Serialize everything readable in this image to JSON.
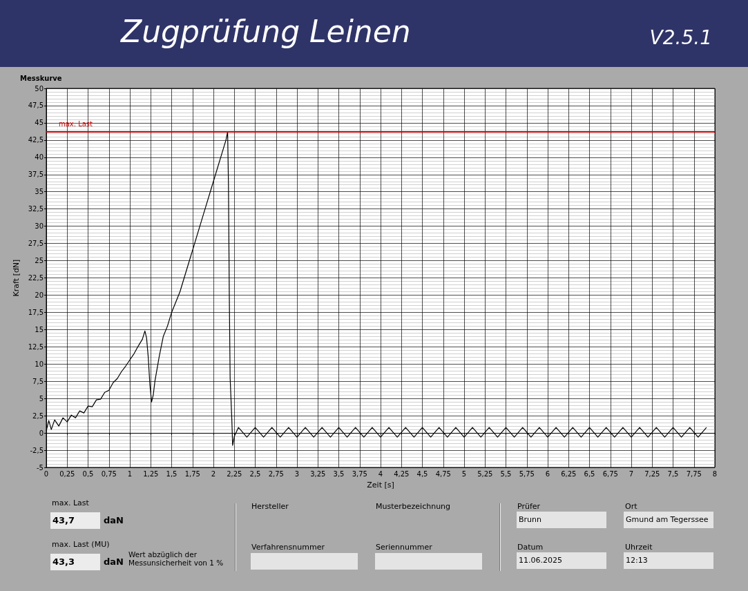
{
  "chart_data": [
    {
      "type": "other",
      "title": "Zugprüfung Leinen",
      "subtitle": "V2.5.1"
    },
    {
      "type": "line",
      "title": "Messkurve",
      "xlabel": "Zeit [s]",
      "ylabel": "Kraft [dN]",
      "grid": true,
      "xlim": [
        0,
        8
      ],
      "ylim": [
        -5,
        50
      ],
      "xticks": [
        0,
        {
          "value": 0.25,
          "label": "0,25"
        },
        {
          "value": 0.5,
          "label": "0,5"
        },
        {
          "value": 0.75,
          "label": "0,75"
        },
        1,
        {
          "value": 1.25,
          "label": "1,25"
        },
        {
          "value": 1.5,
          "label": "1,5"
        },
        {
          "value": 1.75,
          "label": "1,75"
        },
        2,
        {
          "value": 2.25,
          "label": "2,25"
        },
        {
          "value": 2.5,
          "label": "2,5"
        },
        {
          "value": 2.75,
          "label": "2,75"
        },
        3,
        {
          "value": 3.25,
          "label": "3,25"
        },
        {
          "value": 3.5,
          "label": "3,5"
        },
        {
          "value": 3.75,
          "label": "3,75"
        },
        4,
        {
          "value": 4.25,
          "label": "4,25"
        },
        {
          "value": 4.5,
          "label": "4,5"
        },
        {
          "value": 4.75,
          "label": "4,75"
        },
        5,
        {
          "value": 5.25,
          "label": "5,25"
        },
        {
          "value": 5.5,
          "label": "5,5"
        },
        {
          "value": 5.75,
          "label": "5,75"
        },
        6,
        {
          "value": 6.25,
          "label": "6,25"
        },
        {
          "value": 6.5,
          "label": "6,5"
        },
        {
          "value": 6.75,
          "label": "6,75"
        },
        7,
        {
          "value": 7.25,
          "label": "7,25"
        },
        {
          "value": 7.5,
          "label": "7,5"
        },
        {
          "value": 7.75,
          "label": "7,75"
        },
        8
      ],
      "yticks": [
        -5,
        {
          "value": -2.5,
          "label": "-2,5"
        },
        0,
        {
          "value": 2.5,
          "label": "2,5"
        },
        5,
        {
          "value": 7.5,
          "label": "7,5"
        },
        10,
        {
          "value": 12.5,
          "label": "12,5"
        },
        15,
        {
          "value": 17.5,
          "label": "17,5"
        },
        20,
        {
          "value": 22.5,
          "label": "22,5"
        },
        25,
        {
          "value": 27.5,
          "label": "27,5"
        },
        30,
        {
          "value": 32.5,
          "label": "32,5"
        },
        35,
        {
          "value": 37.5,
          "label": "37,5"
        },
        40,
        {
          "value": 42.5,
          "label": "42,5"
        },
        45,
        {
          "value": 47.5,
          "label": "47,5"
        },
        50
      ],
      "ref_lines": [
        {
          "axis": "y",
          "value": 43.7,
          "label": "max. Last",
          "color": "#cc0000"
        }
      ],
      "series": [
        {
          "color": "#000000",
          "x": [
            0,
            0.03,
            0.06,
            0.1,
            0.15,
            0.2,
            0.25,
            0.3,
            0.35,
            0.4,
            0.45,
            0.5,
            0.55,
            0.6,
            0.65,
            0.7,
            0.75,
            0.8,
            0.85,
            0.9,
            0.95,
            1.0,
            1.05,
            1.1,
            1.15,
            1.18,
            1.2,
            1.22,
            1.24,
            1.26,
            1.28,
            1.3,
            1.35,
            1.4,
            1.45,
            1.5,
            1.6,
            1.7,
            1.75,
            1.8,
            1.9,
            2.0,
            2.05,
            2.1,
            2.15,
            2.17,
            2.18,
            2.19,
            2.2,
            2.22,
            2.23,
            2.25,
            2.3,
            2.4,
            2.5,
            2.6,
            2.7,
            2.8,
            2.9,
            3.0,
            3.1,
            3.2,
            3.3,
            3.4,
            3.5,
            3.6,
            3.7,
            3.8,
            3.9,
            4.0,
            4.1,
            4.2,
            4.3,
            4.4,
            4.5,
            4.6,
            4.7,
            4.8,
            4.9,
            5.0,
            5.1,
            5.2,
            5.3,
            5.4,
            5.5,
            5.6,
            5.7,
            5.8,
            5.9,
            6.0,
            6.1,
            6.2,
            6.3,
            6.4,
            6.5,
            6.6,
            6.7,
            6.8,
            6.9,
            7.0,
            7.1,
            7.2,
            7.3,
            7.4,
            7.5,
            7.6,
            7.7,
            7.8,
            7.9
          ],
          "values": [
            0.3,
            1.8,
            0.5,
            1.9,
            1.0,
            2.2,
            1.6,
            2.6,
            2.2,
            3.2,
            2.9,
            3.9,
            3.8,
            4.8,
            4.9,
            5.9,
            6.2,
            7.3,
            7.9,
            8.9,
            9.7,
            10.6,
            11.5,
            12.6,
            13.6,
            14.8,
            13.8,
            11,
            7,
            4.5,
            5.5,
            7.5,
            11,
            14,
            15.5,
            17.5,
            20.5,
            24.5,
            26.5,
            28.5,
            32.5,
            36.5,
            38.5,
            40.5,
            42.5,
            43.7,
            36,
            20,
            8,
            2,
            -1.8,
            -0.5,
            0.8,
            -0.6,
            0.8,
            -0.6,
            0.8,
            -0.6,
            0.8,
            -0.6,
            0.8,
            -0.6,
            0.8,
            -0.6,
            0.8,
            -0.6,
            0.8,
            -0.6,
            0.8,
            -0.6,
            0.8,
            -0.6,
            0.8,
            -0.6,
            0.8,
            -0.6,
            0.8,
            -0.6,
            0.8,
            -0.6,
            0.8,
            -0.6,
            0.8,
            -0.6,
            0.8,
            -0.6,
            0.8,
            -0.6,
            0.8,
            -0.6,
            0.8,
            -0.6,
            0.8,
            -0.6,
            0.8,
            -0.6,
            0.8,
            -0.6,
            0.8,
            -0.6,
            0.8,
            -0.6,
            0.8,
            -0.6,
            0.8,
            -0.6,
            0.8,
            -0.6,
            0.8
          ]
        }
      ]
    },
    {
      "type": "other",
      "annotations": [
        "max. Last",
        "43,7",
        "daN",
        "max. Last (MU)",
        "43,3",
        "daN",
        "Wert abzüglich der Messunsicherheit von 1 %",
        "Hersteller",
        "Musterbezeichnung",
        "Verfahrensnummer",
        "Seriennummer",
        "Prüfer",
        "Brunn",
        "Ort",
        "Gmund am Tegerssee",
        "Datum",
        "11.06.2025",
        "Uhrzeit",
        "12:13"
      ]
    }
  ]
}
